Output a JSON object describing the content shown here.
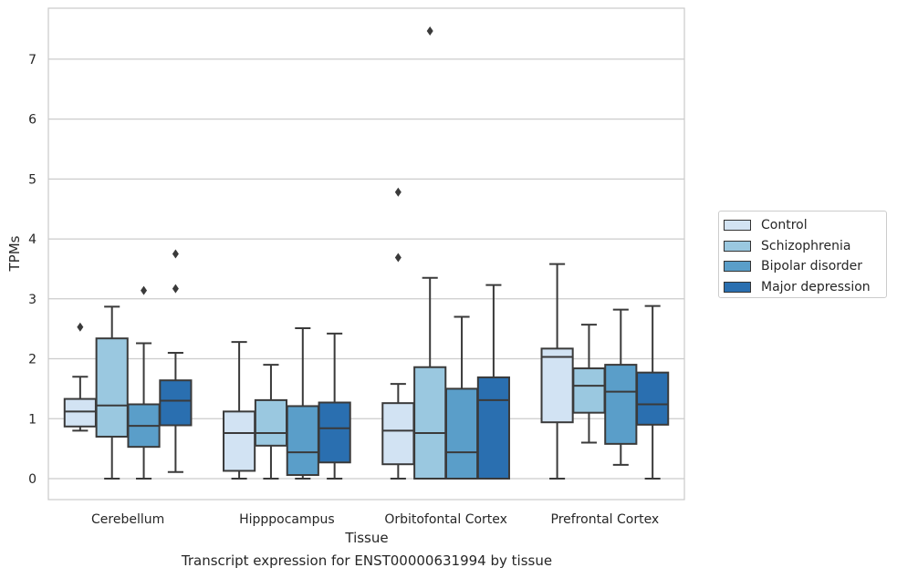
{
  "chart_data": {
    "type": "boxplot",
    "title": "",
    "xlabel": "Tissue",
    "ylabel": "TPMs",
    "caption": "Transcript expression for ENST00000631994 by tissue",
    "categories": [
      "Cerebellum",
      "Hipppocampus",
      "Orbitofontal Cortex",
      "Prefrontal Cortex"
    ],
    "ylim": [
      -0.35,
      7.85
    ],
    "yticks": [
      0,
      1,
      2,
      3,
      4,
      5,
      6,
      7
    ],
    "grid": "horizontal",
    "legend_position": "right",
    "series": [
      {
        "name": "Control",
        "color": "#d2e3f3",
        "boxes": [
          {
            "whislo": 0.8,
            "q1": 0.87,
            "med": 1.12,
            "q3": 1.33,
            "whishi": 1.7,
            "fliers": [
              2.53
            ]
          },
          {
            "whislo": 0.0,
            "q1": 0.13,
            "med": 0.76,
            "q3": 1.12,
            "whishi": 2.28,
            "fliers": []
          },
          {
            "whislo": 0.0,
            "q1": 0.24,
            "med": 0.8,
            "q3": 1.26,
            "whishi": 1.58,
            "fliers": [
              3.69,
              4.78
            ]
          },
          {
            "whislo": 0.0,
            "q1": 0.94,
            "med": 2.03,
            "q3": 2.17,
            "whishi": 3.58,
            "fliers": []
          }
        ]
      },
      {
        "name": "Schizophrenia",
        "color": "#9ac8e0",
        "boxes": [
          {
            "whislo": 0.0,
            "q1": 0.7,
            "med": 1.22,
            "q3": 2.34,
            "whishi": 2.87,
            "fliers": []
          },
          {
            "whislo": 0.0,
            "q1": 0.55,
            "med": 0.76,
            "q3": 1.31,
            "whishi": 1.9,
            "fliers": []
          },
          {
            "whislo": 0.0,
            "q1": 0.0,
            "med": 0.76,
            "q3": 1.86,
            "whishi": 3.35,
            "fliers": [
              7.47
            ]
          },
          {
            "whislo": 0.6,
            "q1": 1.1,
            "med": 1.55,
            "q3": 1.84,
            "whishi": 2.57,
            "fliers": []
          }
        ]
      },
      {
        "name": "Bipolar disorder",
        "color": "#5a9ec9",
        "boxes": [
          {
            "whislo": 0.0,
            "q1": 0.53,
            "med": 0.88,
            "q3": 1.24,
            "whishi": 2.26,
            "fliers": [
              3.14
            ]
          },
          {
            "whislo": 0.0,
            "q1": 0.06,
            "med": 0.44,
            "q3": 1.21,
            "whishi": 2.51,
            "fliers": []
          },
          {
            "whislo": 0.0,
            "q1": 0.0,
            "med": 0.44,
            "q3": 1.5,
            "whishi": 2.7,
            "fliers": []
          },
          {
            "whislo": 0.23,
            "q1": 0.58,
            "med": 1.45,
            "q3": 1.9,
            "whishi": 2.82,
            "fliers": []
          }
        ]
      },
      {
        "name": "Major depression",
        "color": "#2a6fb0",
        "boxes": [
          {
            "whislo": 0.11,
            "q1": 0.89,
            "med": 1.3,
            "q3": 1.64,
            "whishi": 2.1,
            "fliers": [
              3.17,
              3.75
            ]
          },
          {
            "whislo": 0.0,
            "q1": 0.27,
            "med": 0.84,
            "q3": 1.27,
            "whishi": 2.42,
            "fliers": []
          },
          {
            "whislo": 0.0,
            "q1": 0.0,
            "med": 1.31,
            "q3": 1.69,
            "whishi": 3.23,
            "fliers": []
          },
          {
            "whislo": 0.0,
            "q1": 0.9,
            "med": 1.24,
            "q3": 1.77,
            "whishi": 2.88,
            "fliers": []
          }
        ]
      }
    ]
  }
}
